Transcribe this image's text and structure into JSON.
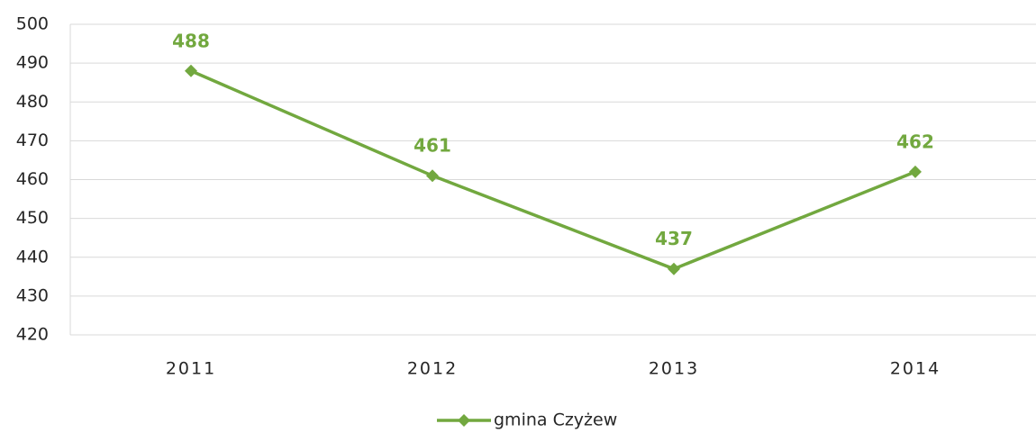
{
  "chart_data": {
    "type": "line",
    "categories": [
      "2011",
      "2012",
      "2013",
      "2014"
    ],
    "series": [
      {
        "name": "gmina Czyżew",
        "color": "#72a83f",
        "values": [
          488,
          461,
          437,
          462
        ]
      }
    ],
    "ylim": [
      420,
      500
    ],
    "yticks": [
      420,
      430,
      440,
      450,
      460,
      470,
      480,
      490,
      500
    ],
    "grid": true,
    "legend": "bottom"
  }
}
